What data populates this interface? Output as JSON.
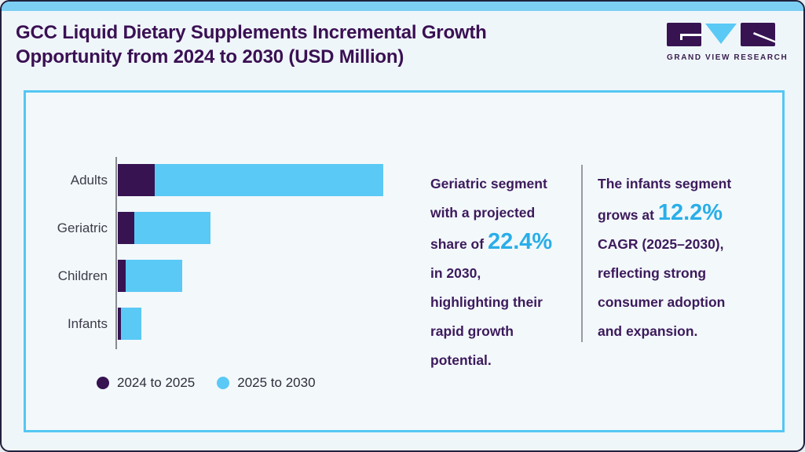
{
  "header": {
    "title_line1": "GCC Liquid Dietary Supplements Incremental Growth",
    "title_line2": "Opportunity from 2024 to 2030 (USD Million)",
    "logo": {
      "wordmark": "GRAND VIEW RESEARCH"
    }
  },
  "colors": {
    "accent_top_bar": "#7ccff3",
    "panel_border_blue": "#54c7f3",
    "series_purple": "#371352",
    "series_blue": "#5ac9f5",
    "highlight_cyan": "#29aee8",
    "title_purple": "#3a1053",
    "insight_purple": "#3c1a5b"
  },
  "chart_data": {
    "type": "bar",
    "orientation": "horizontal",
    "stacked": true,
    "title": "GCC Liquid Dietary Supplements Incremental Growth Opportunity from 2024 to 2030 (USD Million)",
    "categories": [
      "Adults",
      "Geriatric",
      "Children",
      "Infants"
    ],
    "series": [
      {
        "name": "2024 to 2025",
        "color": "#371352",
        "values": [
          47,
          21,
          10,
          4
        ]
      },
      {
        "name": "2025 to 2030",
        "color": "#5ac9f5",
        "values": [
          291,
          97,
          72,
          26
        ]
      }
    ],
    "value_axis": {
      "label": "",
      "range": [
        0,
        360
      ],
      "ticks_visible": false
    },
    "units": "USD Million (value axis unlabeled; values are relative estimates from bar lengths)",
    "grid": false,
    "legend_position": "bottom-left"
  },
  "insights": {
    "block1": {
      "segments": [
        {
          "text": "Geriatric segment with a projected share of ",
          "highlight": false
        },
        {
          "text": "22.4%",
          "highlight": true
        },
        {
          "text": " in 2030, highlighting their rapid growth potential.",
          "highlight": false
        }
      ]
    },
    "block2": {
      "segments": [
        {
          "text": "The infants segment grows at ",
          "highlight": false
        },
        {
          "text": "12.2%",
          "highlight": true
        },
        {
          "text": " CAGR (2025–2030), reflecting strong consumer adoption and expansion.",
          "highlight": false
        }
      ]
    }
  }
}
